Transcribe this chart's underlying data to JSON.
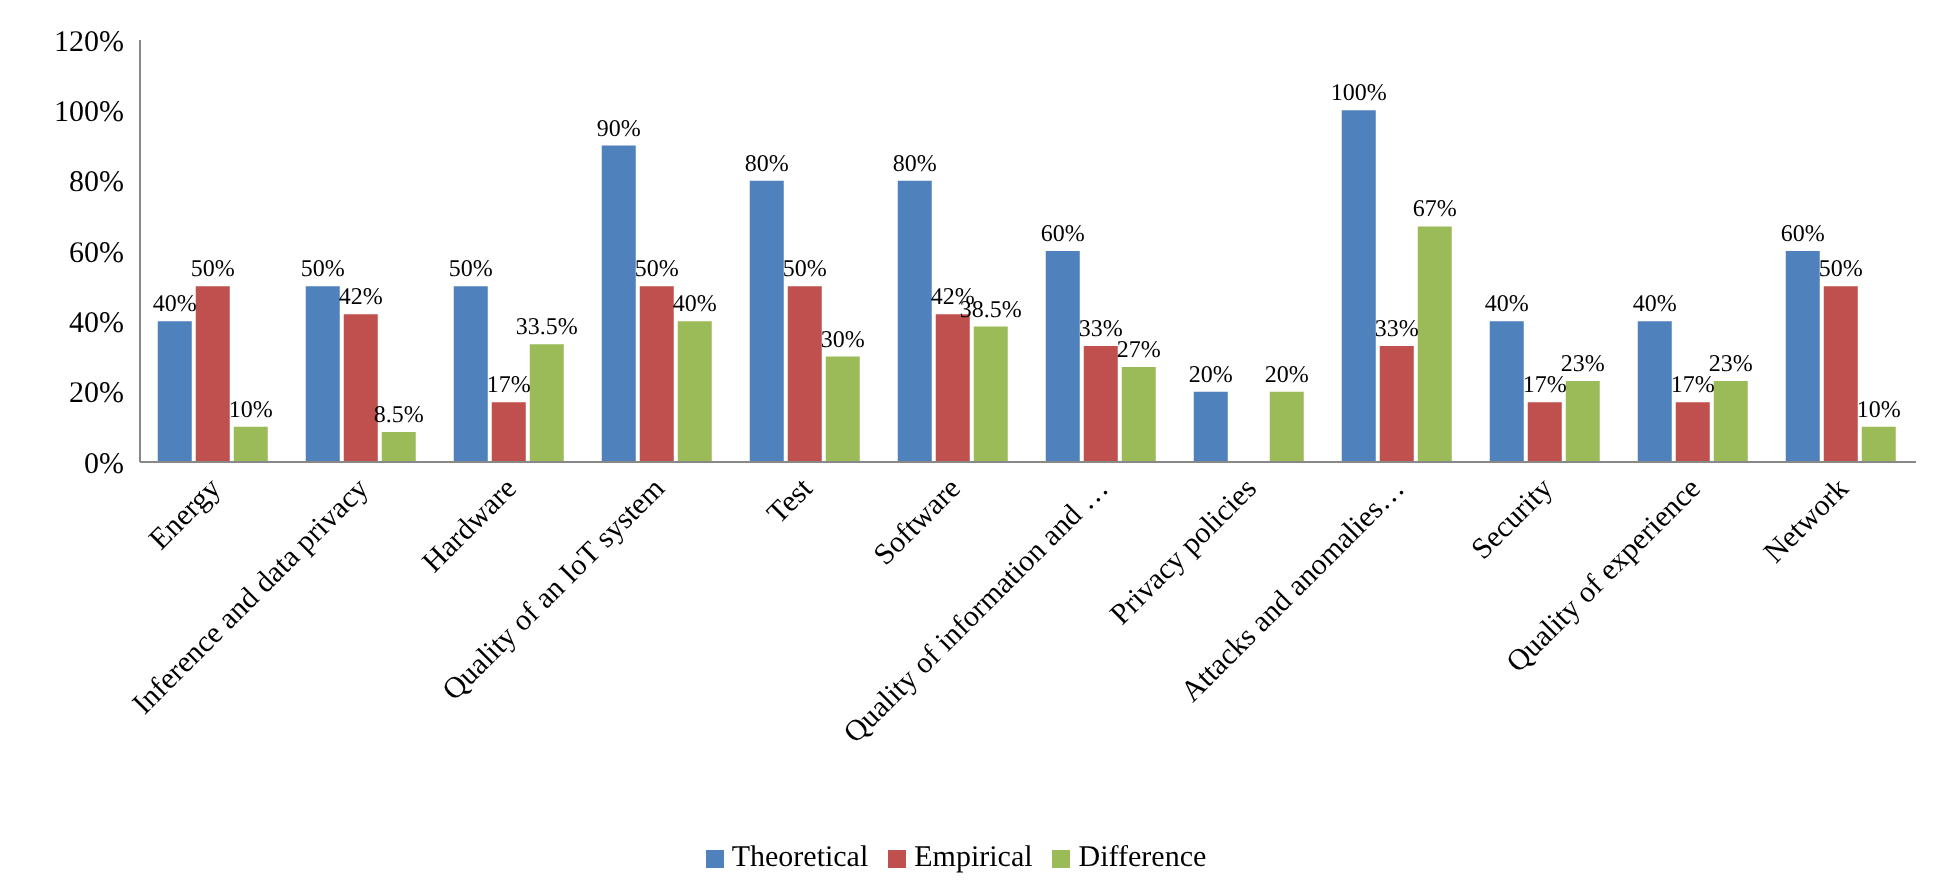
{
  "chart_data": {
    "type": "bar",
    "categories": [
      "Energy",
      "Inference and data privacy",
      "Hardware",
      "Quality of an IoT system",
      "Test",
      "Software",
      "Quality of information and …",
      "Privacy policies",
      "Attacks and anomalies…",
      "Security",
      "Quality of experience",
      "Network"
    ],
    "series": [
      {
        "name": "Theoretical",
        "color": "#4f81bd",
        "values": [
          40,
          50,
          50,
          90,
          80,
          80,
          60,
          20,
          100,
          40,
          40,
          60
        ],
        "value_labels": [
          "40%",
          "50%",
          "50%",
          "90%",
          "80%",
          "80%",
          "60%",
          "20%",
          "100%",
          "40%",
          "40%",
          "60%"
        ]
      },
      {
        "name": "Empirical",
        "color": "#c0504d",
        "values": [
          50,
          42,
          17,
          50,
          50,
          42,
          33,
          null,
          33,
          17,
          17,
          50
        ],
        "value_labels": [
          "50%",
          "42%",
          "17%",
          "50%",
          "50%",
          "42%",
          "33%",
          null,
          "33%",
          "17%",
          "17%",
          "50%"
        ]
      },
      {
        "name": "Difference",
        "color": "#9bbb59",
        "values": [
          10,
          8.5,
          33.5,
          40,
          30,
          38.5,
          27,
          20,
          67,
          23,
          23,
          10
        ],
        "value_labels": [
          "10%",
          "8.5%",
          "33.5%",
          "40%",
          "30%",
          "38.5%",
          "27%",
          "20%",
          "67%",
          "23%",
          "23%",
          "10%"
        ]
      }
    ],
    "ylim": [
      0,
      120
    ],
    "yticks": [
      {
        "value": 0,
        "label": "0%"
      },
      {
        "value": 20,
        "label": "20%"
      },
      {
        "value": 40,
        "label": "40%"
      },
      {
        "value": 60,
        "label": "60%"
      },
      {
        "value": 80,
        "label": "80%"
      },
      {
        "value": 100,
        "label": "100%"
      },
      {
        "value": 120,
        "label": "120%"
      }
    ],
    "legend": "bottom"
  }
}
